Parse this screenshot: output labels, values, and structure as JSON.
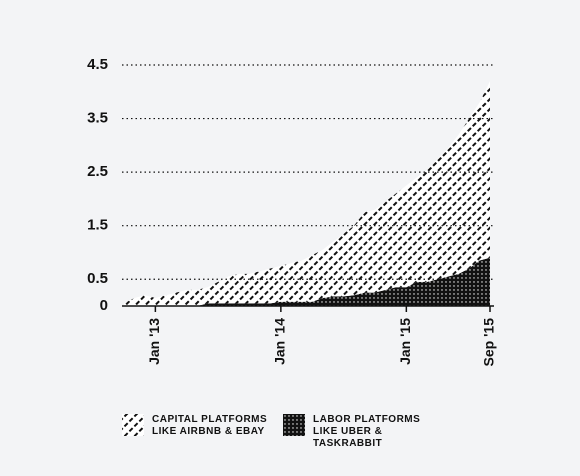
{
  "chart_data": {
    "type": "stacked-area",
    "categories": [
      null,
      null,
      null,
      "Jan '13",
      null,
      null,
      null,
      null,
      null,
      null,
      null,
      null,
      null,
      null,
      null,
      "Jan '14",
      null,
      null,
      null,
      null,
      null,
      null,
      null,
      null,
      null,
      null,
      null,
      "Jan '15",
      null,
      null,
      null,
      null,
      null,
      null,
      null,
      "Sep '15"
    ],
    "series": [
      {
        "name": "LABOR PLATFORMS LIKE UBER & TASKRABBIT",
        "color": "#111111",
        "pattern": "dots",
        "values": [
          0,
          0,
          0,
          0,
          0,
          0,
          0,
          0,
          0.05,
          0.05,
          0.05,
          0.05,
          0.05,
          0.05,
          0.05,
          0.08,
          0.08,
          0.08,
          0.08,
          0.15,
          0.18,
          0.18,
          0.2,
          0.25,
          0.25,
          0.3,
          0.35,
          0.35,
          0.45,
          0.45,
          0.5,
          0.55,
          0.6,
          0.7,
          0.85,
          0.9
        ]
      },
      {
        "name": "CAPITAL PLATFORMS LIKE AIRBNB & EBAY",
        "color": "#111111",
        "pattern": "hatch",
        "values": [
          0.05,
          0.15,
          0.2,
          0.15,
          0.2,
          0.25,
          0.3,
          0.3,
          0.3,
          0.4,
          0.5,
          0.55,
          0.55,
          0.6,
          0.65,
          0.67,
          0.72,
          0.77,
          0.87,
          0.9,
          1.02,
          1.17,
          1.3,
          1.5,
          1.55,
          1.65,
          1.75,
          1.9,
          1.95,
          2.1,
          2.25,
          2.4,
          2.6,
          2.8,
          2.95,
          3.3
        ]
      }
    ],
    "ylim": [
      0,
      4.5
    ],
    "yticks": [
      0,
      0.5,
      1.5,
      2.5,
      3.5,
      4.5
    ],
    "grid": true
  }
}
